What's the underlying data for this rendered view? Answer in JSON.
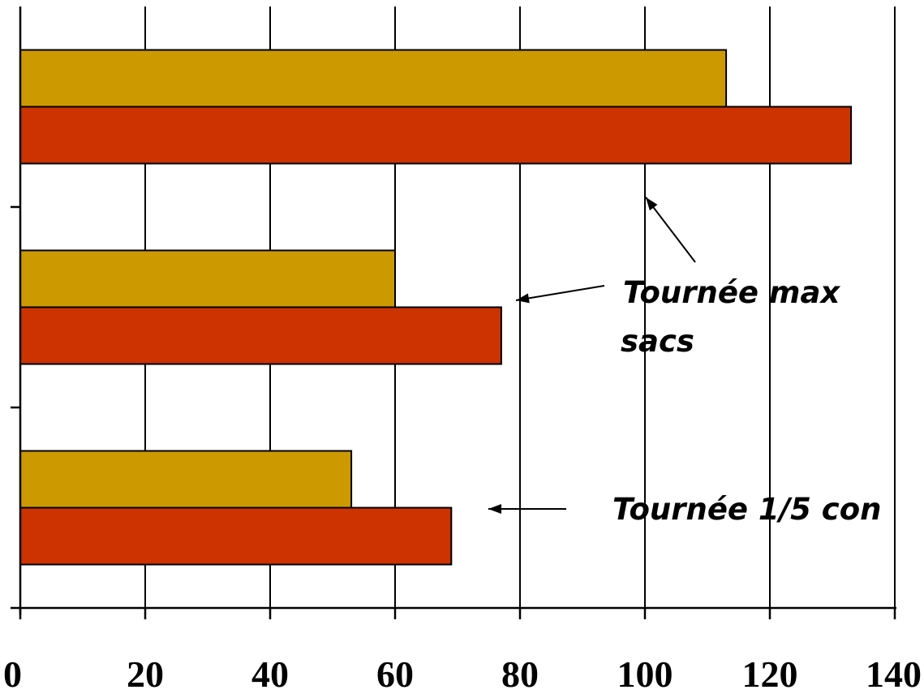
{
  "chart_data": {
    "type": "bar",
    "orientation": "horizontal",
    "categories": [
      "",
      "",
      ""
    ],
    "series": [
      {
        "values": [
          53,
          60,
          113
        ],
        "color": "#CC9900"
      },
      {
        "values": [
          69,
          77,
          133
        ],
        "color": "#CC3300"
      }
    ],
    "xlim": [
      0,
      140
    ],
    "x_ticks": [
      "0",
      "20",
      "40",
      "60",
      "80",
      "100",
      "120",
      "140"
    ],
    "grid": true,
    "title": "",
    "xlabel": "",
    "ylabel": "",
    "annotations": [
      {
        "text_lines": [
          "Tournée max",
          "sacs"
        ]
      },
      {
        "text_lines": [
          "Tournée 1/5 con"
        ]
      }
    ]
  }
}
